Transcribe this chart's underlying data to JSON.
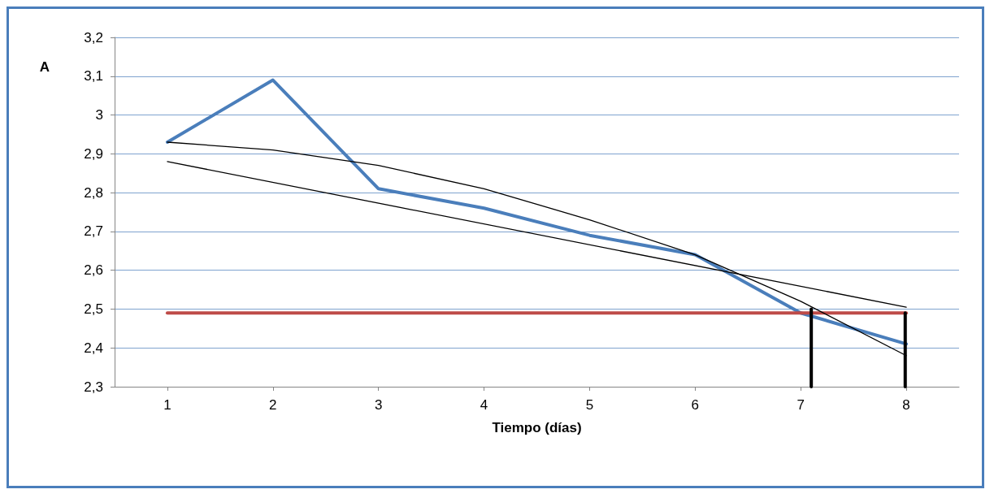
{
  "chart_data": {
    "type": "line",
    "xlabel": "Tiempo (días)",
    "ylabel": "A",
    "x": [
      1,
      2,
      3,
      4,
      5,
      6,
      7,
      8
    ],
    "xlim": [
      0.5,
      8.5
    ],
    "xticks": [
      1,
      2,
      3,
      4,
      5,
      6,
      7,
      8
    ],
    "ylim": [
      2.3,
      3.2
    ],
    "yticks": [
      {
        "value": 2.3,
        "label": "2,3"
      },
      {
        "value": 2.4,
        "label": "2,4"
      },
      {
        "value": 2.5,
        "label": "2,5"
      },
      {
        "value": 2.6,
        "label": "2,6"
      },
      {
        "value": 2.7,
        "label": "2,7"
      },
      {
        "value": 2.8,
        "label": "2,8"
      },
      {
        "value": 2.9,
        "label": "2,9"
      },
      3,
      {
        "value": 3.1,
        "label": "3,1"
      },
      {
        "value": 3.2,
        "label": "3,2"
      }
    ],
    "grid": "y",
    "marker": "none",
    "line_style": "solid",
    "series": [
      {
        "color": "#4a7ebb",
        "values": [
          2.93,
          3.09,
          2.81,
          2.76,
          2.69,
          2.64,
          2.49,
          2.41
        ]
      },
      {
        "color": "#be4b48",
        "values": [
          2.49,
          2.49,
          2.49,
          2.49,
          2.49,
          2.49,
          2.49,
          2.49
        ]
      },
      {
        "color": "#000000",
        "x": [
          1,
          8
        ],
        "values": [
          2.88,
          2.505
        ]
      },
      {
        "color": "#000000",
        "values": [
          2.93,
          2.91,
          2.87,
          2.81,
          2.73,
          2.64,
          2.52,
          2.38
        ]
      },
      {
        "color": "#000000",
        "x": [
          7.1,
          7.1
        ],
        "values": [
          2.5,
          2.3
        ]
      },
      {
        "color": "#000000",
        "x": [
          7.99,
          7.99
        ],
        "values": [
          2.49,
          2.3
        ]
      }
    ]
  }
}
